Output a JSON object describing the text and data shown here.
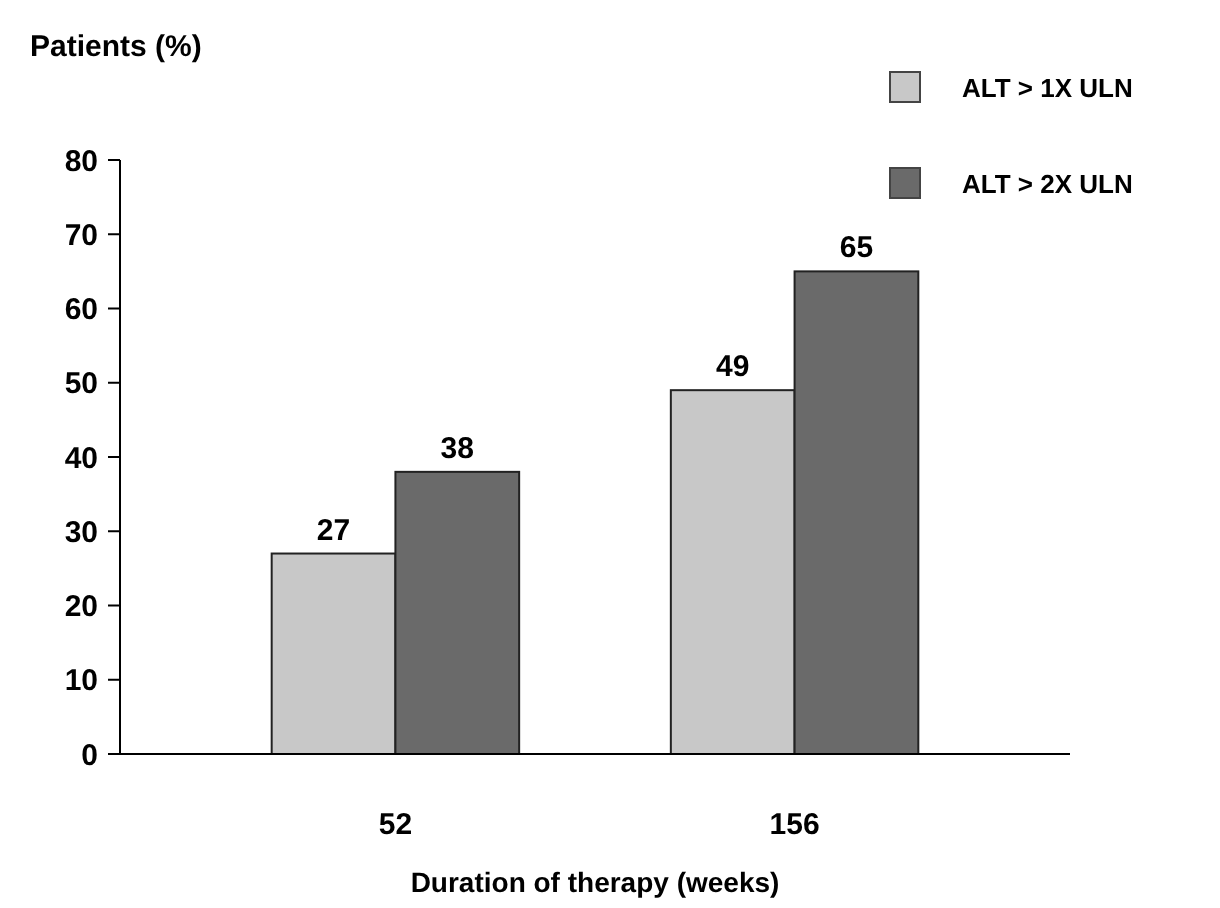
{
  "chart_data": {
    "type": "bar",
    "ylabel": "Patients (%)",
    "xlabel": "Duration of therapy (weeks)",
    "categories": [
      "52",
      "156"
    ],
    "series": [
      {
        "name": "ALT > 1X ULN",
        "color": "#c8c8c8",
        "values": [
          27,
          49
        ]
      },
      {
        "name": "ALT > 2X ULN",
        "color": "#6a6a6a",
        "values": [
          38,
          65
        ]
      }
    ],
    "ylim": [
      0,
      80
    ],
    "yticks": [
      0,
      10,
      20,
      30,
      40,
      50,
      60,
      70,
      80
    ],
    "data_labels": true,
    "legend": "top right",
    "grid": false
  }
}
